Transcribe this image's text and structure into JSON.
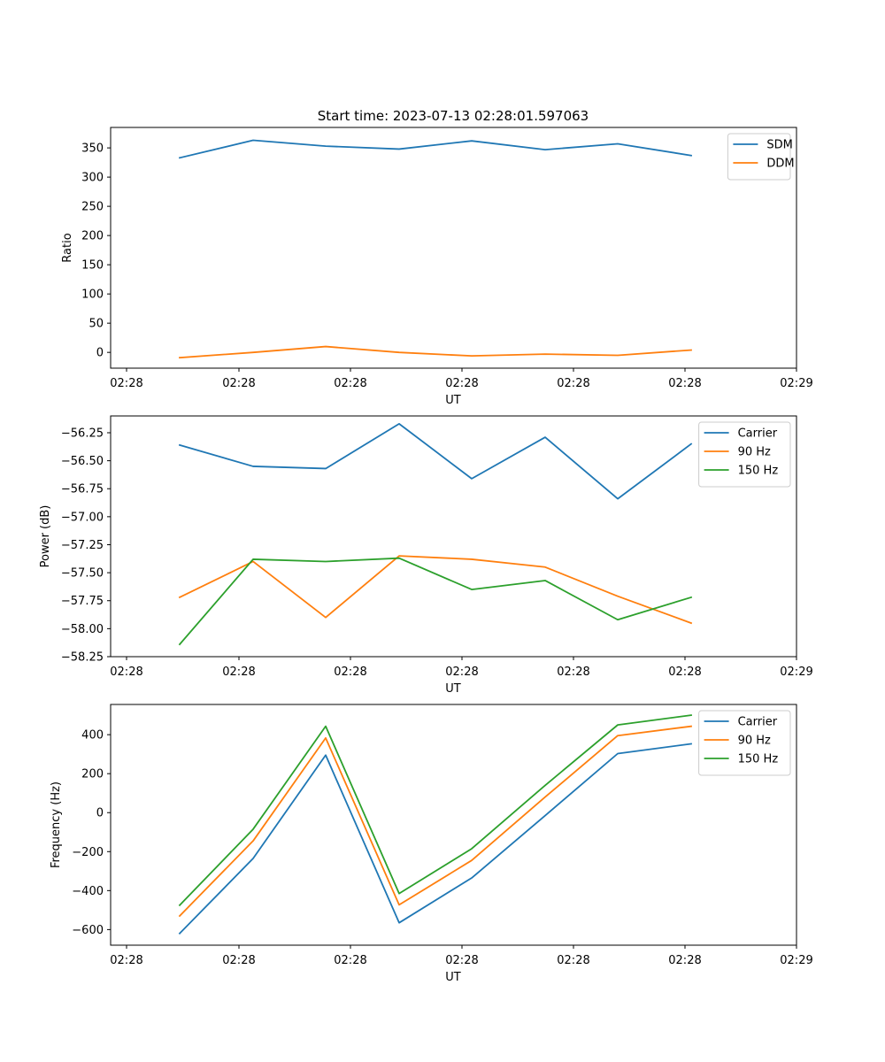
{
  "figure_title": "Start time: 2023-07-13 02:28:01.597063",
  "colors": {
    "blue": "#1f77b4",
    "orange": "#ff7f0e",
    "green": "#2ca02c",
    "axis": "#000000"
  },
  "chart_data": [
    {
      "type": "line",
      "title": "Start time: 2023-07-13 02:28:01.597063",
      "xlabel": "UT",
      "ylabel": "Ratio",
      "x_tick_labels": [
        "02:28",
        "02:28",
        "02:28",
        "02:28",
        "02:28",
        "02:28",
        "02:28",
        "02:29"
      ],
      "y_ticks": [
        0,
        50,
        100,
        150,
        200,
        250,
        300,
        350
      ],
      "y_tick_labels": [
        "0",
        "50",
        "100",
        "150",
        "200",
        "250",
        "300",
        "350"
      ],
      "ylim": [
        -27,
        385
      ],
      "x_index": [
        0,
        1,
        2,
        3,
        4,
        5,
        6,
        7
      ],
      "legend_position": "top-right",
      "grid": false,
      "series": [
        {
          "name": "SDM",
          "color": "#1f77b4",
          "values": [
            333,
            363,
            353,
            348,
            362,
            347,
            357,
            337
          ]
        },
        {
          "name": "DDM",
          "color": "#ff7f0e",
          "values": [
            -9,
            0,
            10,
            0,
            -6,
            -3,
            -5,
            4
          ]
        }
      ]
    },
    {
      "type": "line",
      "xlabel": "UT",
      "ylabel": "Power (dB)",
      "x_tick_labels": [
        "02:28",
        "02:28",
        "02:28",
        "02:28",
        "02:28",
        "02:28",
        "02:28",
        "02:29"
      ],
      "y_ticks": [
        -58.25,
        -58.0,
        -57.75,
        -57.5,
        -57.25,
        -57.0,
        -56.75,
        -56.5,
        -56.25
      ],
      "y_tick_labels": [
        "−58.25",
        "−58.00",
        "−57.75",
        "−57.50",
        "−57.25",
        "−57.00",
        "−56.75",
        "−56.50",
        "−56.25"
      ],
      "ylim": [
        -58.25,
        -56.1
      ],
      "x_index": [
        0,
        1,
        2,
        3,
        4,
        5,
        6,
        7
      ],
      "legend_position": "top-right",
      "grid": false,
      "series": [
        {
          "name": "Carrier",
          "color": "#1f77b4",
          "values": [
            -56.36,
            -56.55,
            -56.57,
            -56.17,
            -56.66,
            -56.29,
            -56.84,
            -56.35
          ]
        },
        {
          "name": "90 Hz",
          "color": "#ff7f0e",
          "values": [
            -57.72,
            -57.4,
            -57.9,
            -57.35,
            -57.38,
            -57.45,
            -57.71,
            -57.95
          ]
        },
        {
          "name": "150 Hz",
          "color": "#2ca02c",
          "values": [
            -58.14,
            -57.38,
            -57.4,
            -57.37,
            -57.65,
            -57.57,
            -57.92,
            -57.72
          ]
        }
      ]
    },
    {
      "type": "line",
      "xlabel": "UT",
      "ylabel": "Frequency (Hz)",
      "x_tick_labels": [
        "02:28",
        "02:28",
        "02:28",
        "02:28",
        "02:28",
        "02:28",
        "02:28",
        "02:29"
      ],
      "y_ticks": [
        -600,
        -400,
        -200,
        0,
        200,
        400
      ],
      "y_tick_labels": [
        "−600",
        "−400",
        "−200",
        "0",
        "200",
        "400"
      ],
      "ylim": [
        -680,
        555
      ],
      "x_index": [
        0,
        1,
        2,
        3,
        4,
        5,
        6,
        7
      ],
      "legend_position": "top-right",
      "grid": false,
      "series": [
        {
          "name": "Carrier",
          "color": "#1f77b4",
          "values": [
            -620,
            -235,
            295,
            -565,
            -335,
            -15,
            303,
            353
          ]
        },
        {
          "name": "90 Hz",
          "color": "#ff7f0e",
          "values": [
            -530,
            -145,
            383,
            -473,
            -245,
            80,
            395,
            443
          ]
        },
        {
          "name": "150 Hz",
          "color": "#2ca02c",
          "values": [
            -475,
            -85,
            443,
            -415,
            -185,
            140,
            450,
            500
          ]
        }
      ]
    }
  ]
}
